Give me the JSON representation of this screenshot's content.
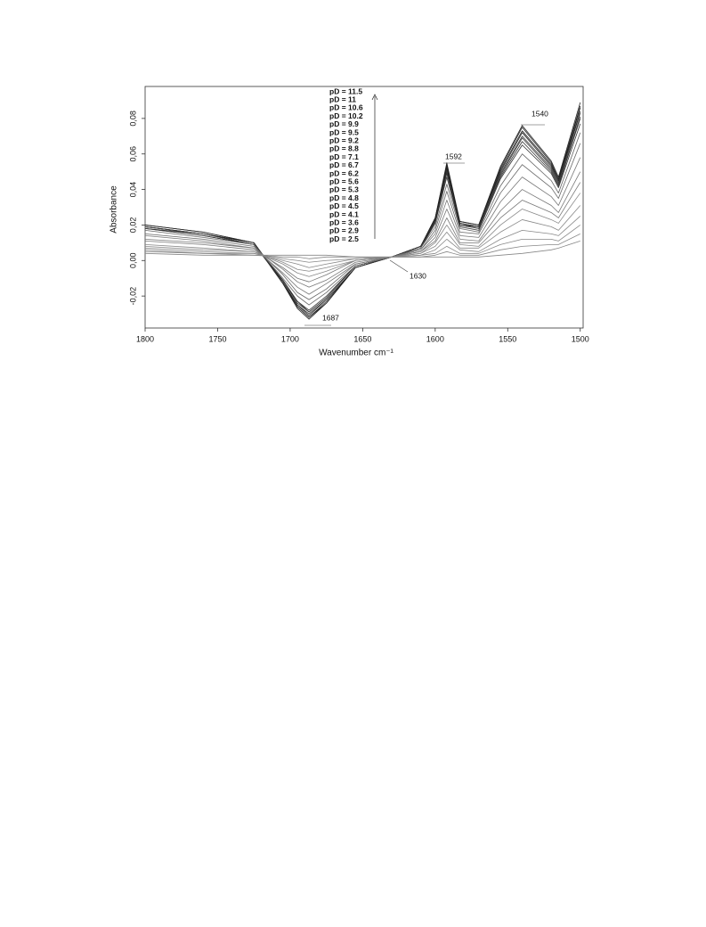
{
  "chart_data": {
    "type": "line",
    "x_label": "Wavenumber cm⁻¹",
    "y_label": "Absorbance",
    "x": [
      1800,
      1760,
      1725,
      1705,
      1695,
      1687,
      1675,
      1655,
      1630,
      1610,
      1600,
      1592,
      1583,
      1570,
      1555,
      1540,
      1520,
      1515,
      1500
    ],
    "xlim": [
      1800,
      1498
    ],
    "xticks": [
      1800,
      1750,
      1700,
      1650,
      1600,
      1550,
      1500
    ],
    "ylim": [
      -0.038,
      0.098
    ],
    "yticks": [
      {
        "value": -0.02,
        "label": "-0,02"
      },
      {
        "value": 0,
        "label": "0,00"
      },
      {
        "value": 0.02,
        "label": "0,02"
      },
      {
        "value": 0.04,
        "label": "0,04"
      },
      {
        "value": 0.06,
        "label": "0,06"
      },
      {
        "value": 0.08,
        "label": "0,08"
      }
    ],
    "annotations": [
      "1687",
      "1592",
      "1540",
      "1630"
    ],
    "series": [
      {
        "name": "pD = 11.5",
        "color": "#222",
        "values": [
          0.02,
          0.016,
          0.01,
          -0.013,
          -0.027,
          -0.033,
          -0.024,
          -0.004,
          0.002,
          0.008,
          0.024,
          0.055,
          0.022,
          0.02,
          0.053,
          0.076,
          0.056,
          0.047,
          0.089
        ]
      },
      {
        "name": "pD = 11",
        "color": "#222",
        "values": [
          0.02,
          0.016,
          0.01,
          -0.013,
          -0.026,
          -0.032,
          -0.024,
          -0.004,
          0.002,
          0.008,
          0.024,
          0.054,
          0.022,
          0.02,
          0.052,
          0.075,
          0.055,
          0.046,
          0.087
        ]
      },
      {
        "name": "pD = 10.6",
        "color": "#222",
        "values": [
          0.019,
          0.015,
          0.01,
          -0.012,
          -0.026,
          -0.032,
          -0.023,
          -0.004,
          0.002,
          0.008,
          0.023,
          0.053,
          0.021,
          0.019,
          0.051,
          0.073,
          0.054,
          0.045,
          0.086
        ]
      },
      {
        "name": "pD = 10.2",
        "color": "#222",
        "values": [
          0.019,
          0.015,
          0.01,
          -0.012,
          -0.025,
          -0.031,
          -0.022,
          -0.004,
          0.002,
          0.008,
          0.023,
          0.052,
          0.021,
          0.019,
          0.05,
          0.072,
          0.053,
          0.045,
          0.084
        ]
      },
      {
        "name": "pD = 9.9",
        "color": "#333",
        "values": [
          0.019,
          0.015,
          0.009,
          -0.012,
          -0.025,
          -0.03,
          -0.022,
          -0.004,
          0.002,
          0.008,
          0.022,
          0.051,
          0.02,
          0.019,
          0.049,
          0.07,
          0.052,
          0.044,
          0.083
        ]
      },
      {
        "name": "pD = 9.5",
        "color": "#333",
        "values": [
          0.018,
          0.015,
          0.009,
          -0.011,
          -0.024,
          -0.029,
          -0.021,
          -0.003,
          0.002,
          0.007,
          0.022,
          0.05,
          0.02,
          0.018,
          0.048,
          0.069,
          0.051,
          0.043,
          0.081
        ]
      },
      {
        "name": "pD = 9.2",
        "color": "#333",
        "values": [
          0.018,
          0.014,
          0.009,
          -0.011,
          -0.023,
          -0.029,
          -0.021,
          -0.003,
          0.002,
          0.007,
          0.021,
          0.049,
          0.02,
          0.018,
          0.047,
          0.067,
          0.05,
          0.042,
          0.08
        ]
      },
      {
        "name": "pD = 8.8",
        "color": "#333",
        "values": [
          0.018,
          0.014,
          0.009,
          -0.011,
          -0.023,
          -0.028,
          -0.02,
          -0.003,
          0.002,
          0.007,
          0.021,
          0.047,
          0.019,
          0.017,
          0.046,
          0.065,
          0.049,
          0.041,
          0.077
        ]
      },
      {
        "name": "pD = 7.1",
        "color": "#666",
        "values": [
          0.017,
          0.013,
          0.009,
          -0.01,
          -0.02,
          -0.025,
          -0.018,
          -0.003,
          0.002,
          0.007,
          0.019,
          0.043,
          0.018,
          0.016,
          0.042,
          0.06,
          0.045,
          0.038,
          0.072
        ]
      },
      {
        "name": "pD = 6.7",
        "color": "#666",
        "values": [
          0.015,
          0.012,
          0.008,
          -0.008,
          -0.018,
          -0.022,
          -0.016,
          -0.002,
          0.002,
          0.006,
          0.017,
          0.039,
          0.016,
          0.015,
          0.038,
          0.054,
          0.041,
          0.035,
          0.066
        ]
      },
      {
        "name": "pD = 6.2",
        "color": "#777",
        "values": [
          0.014,
          0.011,
          0.007,
          -0.007,
          -0.015,
          -0.019,
          -0.013,
          -0.002,
          0.002,
          0.006,
          0.015,
          0.034,
          0.014,
          0.013,
          0.033,
          0.047,
          0.036,
          0.031,
          0.058
        ]
      },
      {
        "name": "pD = 5.6",
        "color": "#777",
        "values": [
          0.012,
          0.01,
          0.007,
          -0.005,
          -0.012,
          -0.015,
          -0.011,
          -0.001,
          0.002,
          0.005,
          0.013,
          0.029,
          0.012,
          0.011,
          0.028,
          0.04,
          0.031,
          0.027,
          0.05
        ]
      },
      {
        "name": "pD = 5.3",
        "color": "#777",
        "values": [
          0.011,
          0.009,
          0.006,
          -0.004,
          -0.01,
          -0.012,
          -0.008,
          0.0,
          0.002,
          0.005,
          0.011,
          0.024,
          0.01,
          0.01,
          0.024,
          0.034,
          0.027,
          0.024,
          0.044
        ]
      },
      {
        "name": "pD = 4.8",
        "color": "#888",
        "values": [
          0.009,
          0.007,
          0.005,
          -0.002,
          -0.007,
          -0.009,
          -0.006,
          0.0,
          0.002,
          0.004,
          0.01,
          0.02,
          0.009,
          0.008,
          0.02,
          0.029,
          0.023,
          0.021,
          0.038
        ]
      },
      {
        "name": "pD = 4.5",
        "color": "#888",
        "values": [
          0.008,
          0.006,
          0.005,
          -0.001,
          -0.005,
          -0.006,
          -0.004,
          0.0,
          0.002,
          0.004,
          0.008,
          0.016,
          0.007,
          0.007,
          0.016,
          0.023,
          0.019,
          0.017,
          0.031
        ]
      },
      {
        "name": "pD = 4.1",
        "color": "#888",
        "values": [
          0.007,
          0.005,
          0.004,
          0.0,
          -0.002,
          -0.004,
          -0.002,
          0.001,
          0.002,
          0.003,
          0.006,
          0.012,
          0.006,
          0.005,
          0.012,
          0.017,
          0.015,
          0.014,
          0.025
        ]
      },
      {
        "name": "pD = 3.6",
        "color": "#888",
        "values": [
          0.006,
          0.004,
          0.004,
          0.001,
          0.0,
          -0.001,
          0.0,
          0.001,
          0.002,
          0.003,
          0.004,
          0.008,
          0.004,
          0.004,
          0.009,
          0.012,
          0.012,
          0.011,
          0.02
        ]
      },
      {
        "name": "pD = 2.9",
        "color": "#888",
        "values": [
          0.005,
          0.004,
          0.003,
          0.002,
          0.002,
          0.001,
          0.002,
          0.002,
          0.002,
          0.002,
          0.003,
          0.005,
          0.003,
          0.003,
          0.006,
          0.008,
          0.009,
          0.009,
          0.015
        ]
      },
      {
        "name": "pD = 2.5",
        "color": "#888",
        "values": [
          0.004,
          0.003,
          0.003,
          0.003,
          0.003,
          0.003,
          0.003,
          0.002,
          0.002,
          0.002,
          0.002,
          0.002,
          0.002,
          0.002,
          0.003,
          0.004,
          0.006,
          0.007,
          0.011
        ]
      }
    ]
  }
}
